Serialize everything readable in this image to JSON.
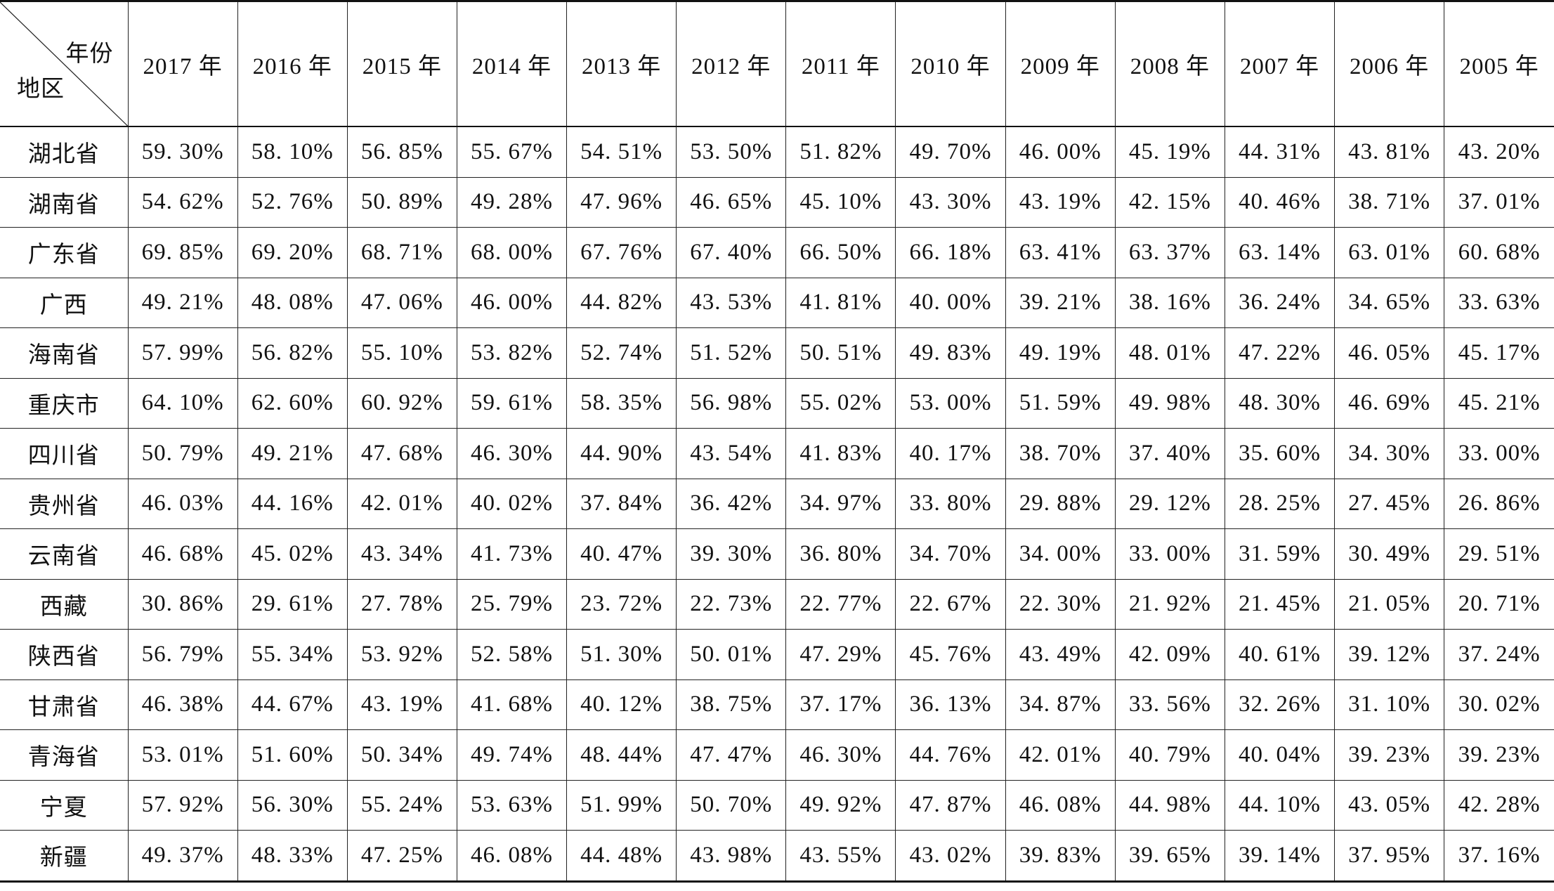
{
  "table": {
    "corner_top": "年份",
    "corner_bottom": "地区",
    "years": [
      "2017 年",
      "2016 年",
      "2015 年",
      "2014 年",
      "2013 年",
      "2012 年",
      "2011 年",
      "2010 年",
      "2009 年",
      "2008 年",
      "2007 年",
      "2006 年",
      "2005 年"
    ],
    "rows": [
      {
        "region": "湖北省",
        "values": [
          "59. 30%",
          "58. 10%",
          "56. 85%",
          "55. 67%",
          "54. 51%",
          "53. 50%",
          "51. 82%",
          "49. 70%",
          "46. 00%",
          "45. 19%",
          "44. 31%",
          "43. 81%",
          "43. 20%"
        ]
      },
      {
        "region": "湖南省",
        "values": [
          "54. 62%",
          "52. 76%",
          "50. 89%",
          "49. 28%",
          "47. 96%",
          "46. 65%",
          "45. 10%",
          "43. 30%",
          "43. 19%",
          "42. 15%",
          "40. 46%",
          "38. 71%",
          "37. 01%"
        ]
      },
      {
        "region": "广东省",
        "values": [
          "69. 85%",
          "69. 20%",
          "68. 71%",
          "68. 00%",
          "67. 76%",
          "67. 40%",
          "66. 50%",
          "66. 18%",
          "63. 41%",
          "63. 37%",
          "63. 14%",
          "63. 01%",
          "60. 68%"
        ]
      },
      {
        "region": "广西",
        "values": [
          "49. 21%",
          "48. 08%",
          "47. 06%",
          "46. 00%",
          "44. 82%",
          "43. 53%",
          "41. 81%",
          "40. 00%",
          "39. 21%",
          "38. 16%",
          "36. 24%",
          "34. 65%",
          "33. 63%"
        ]
      },
      {
        "region": "海南省",
        "values": [
          "57. 99%",
          "56. 82%",
          "55. 10%",
          "53. 82%",
          "52. 74%",
          "51. 52%",
          "50. 51%",
          "49. 83%",
          "49. 19%",
          "48. 01%",
          "47. 22%",
          "46. 05%",
          "45. 17%"
        ]
      },
      {
        "region": "重庆市",
        "values": [
          "64. 10%",
          "62. 60%",
          "60. 92%",
          "59. 61%",
          "58. 35%",
          "56. 98%",
          "55. 02%",
          "53. 00%",
          "51. 59%",
          "49. 98%",
          "48. 30%",
          "46. 69%",
          "45. 21%"
        ]
      },
      {
        "region": "四川省",
        "values": [
          "50. 79%",
          "49. 21%",
          "47. 68%",
          "46. 30%",
          "44. 90%",
          "43. 54%",
          "41. 83%",
          "40. 17%",
          "38. 70%",
          "37. 40%",
          "35. 60%",
          "34. 30%",
          "33. 00%"
        ]
      },
      {
        "region": "贵州省",
        "values": [
          "46. 03%",
          "44. 16%",
          "42. 01%",
          "40. 02%",
          "37. 84%",
          "36. 42%",
          "34. 97%",
          "33. 80%",
          "29. 88%",
          "29. 12%",
          "28. 25%",
          "27. 45%",
          "26. 86%"
        ]
      },
      {
        "region": "云南省",
        "values": [
          "46. 68%",
          "45. 02%",
          "43. 34%",
          "41. 73%",
          "40. 47%",
          "39. 30%",
          "36. 80%",
          "34. 70%",
          "34. 00%",
          "33. 00%",
          "31. 59%",
          "30. 49%",
          "29. 51%"
        ]
      },
      {
        "region": "西藏",
        "values": [
          "30. 86%",
          "29. 61%",
          "27. 78%",
          "25. 79%",
          "23. 72%",
          "22. 73%",
          "22. 77%",
          "22. 67%",
          "22. 30%",
          "21. 92%",
          "21. 45%",
          "21. 05%",
          "20. 71%"
        ]
      },
      {
        "region": "陕西省",
        "values": [
          "56. 79%",
          "55. 34%",
          "53. 92%",
          "52. 58%",
          "51. 30%",
          "50. 01%",
          "47. 29%",
          "45. 76%",
          "43. 49%",
          "42. 09%",
          "40. 61%",
          "39. 12%",
          "37. 24%"
        ]
      },
      {
        "region": "甘肃省",
        "values": [
          "46. 38%",
          "44. 67%",
          "43. 19%",
          "41. 68%",
          "40. 12%",
          "38. 75%",
          "37. 17%",
          "36. 13%",
          "34. 87%",
          "33. 56%",
          "32. 26%",
          "31. 10%",
          "30. 02%"
        ]
      },
      {
        "region": "青海省",
        "values": [
          "53. 01%",
          "51. 60%",
          "50. 34%",
          "49. 74%",
          "48. 44%",
          "47. 47%",
          "46. 30%",
          "44. 76%",
          "42. 01%",
          "40. 79%",
          "40. 04%",
          "39. 23%",
          "39. 23%"
        ]
      },
      {
        "region": "宁夏",
        "values": [
          "57. 92%",
          "56. 30%",
          "55. 24%",
          "53. 63%",
          "51. 99%",
          "50. 70%",
          "49. 92%",
          "47. 87%",
          "46. 08%",
          "44. 98%",
          "44. 10%",
          "43. 05%",
          "42. 28%"
        ]
      },
      {
        "region": "新疆",
        "values": [
          "49. 37%",
          "48. 33%",
          "47. 25%",
          "46. 08%",
          "44. 48%",
          "43. 98%",
          "43. 55%",
          "43. 02%",
          "39. 83%",
          "39. 65%",
          "39. 14%",
          "37. 95%",
          "37. 16%"
        ]
      }
    ]
  }
}
